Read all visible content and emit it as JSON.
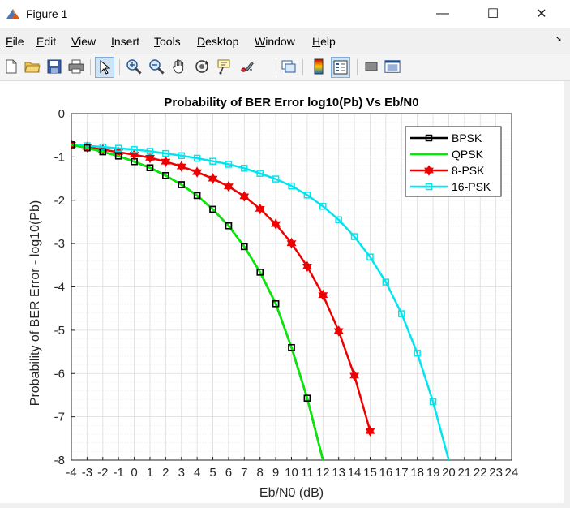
{
  "window": {
    "title": "Figure 1",
    "minimize_glyph": "—",
    "maximize_glyph": "☐",
    "close_glyph": "✕"
  },
  "menubar": {
    "items": [
      {
        "label": "File",
        "underline": "F",
        "rest": "ile"
      },
      {
        "label": "Edit",
        "underline": "E",
        "rest": "dit"
      },
      {
        "label": "View",
        "underline": "V",
        "rest": "iew"
      },
      {
        "label": "Insert",
        "underline": "I",
        "rest": "nsert"
      },
      {
        "label": "Tools",
        "underline": "T",
        "rest": "ools"
      },
      {
        "label": "Desktop",
        "underline": "D",
        "rest": "esktop"
      },
      {
        "label": "Window",
        "underline": "W",
        "rest": "indow"
      },
      {
        "label": "Help",
        "underline": "H",
        "rest": "elp"
      }
    ],
    "overflow_glyph": "➘"
  },
  "toolbar": {
    "icons": [
      "new-figure-icon",
      "open-file-icon",
      "save-icon",
      "print-icon",
      "edit-plot-arrow-icon",
      "zoom-in-icon",
      "zoom-out-icon",
      "pan-hand-icon",
      "rotate-3d-icon",
      "data-cursor-icon",
      "brush-icon",
      "link-plot-icon",
      "colorbar-icon",
      "legend-icon",
      "hide-plot-tools-icon",
      "show-plot-tools-icon"
    ]
  },
  "chart_data": {
    "type": "line",
    "title": "Probability of BER Error log10(Pb) Vs Eb/N0",
    "xlabel": "Eb/N0 (dB)",
    "ylabel": "Probability of BER Error - log10(Pb)",
    "xlim": [
      -4,
      24
    ],
    "ylim": [
      -8,
      0
    ],
    "xticks": [
      -4,
      -3,
      -2,
      -1,
      0,
      1,
      2,
      3,
      4,
      5,
      6,
      7,
      8,
      9,
      10,
      11,
      12,
      13,
      14,
      15,
      16,
      17,
      18,
      19,
      20,
      21,
      22,
      23,
      24
    ],
    "yticks": [
      0,
      -1,
      -2,
      -3,
      -4,
      -5,
      -6,
      -7,
      -8
    ],
    "grid": true,
    "minor_grid": true,
    "legend_position": "top-right",
    "x": [
      -4,
      -3,
      -2,
      -1,
      0,
      1,
      2,
      3,
      4,
      5,
      6,
      7,
      8,
      9,
      10,
      11,
      12,
      13,
      14,
      15,
      16,
      17,
      18,
      19,
      20
    ],
    "series": [
      {
        "name": "BPSK",
        "color": "#000000",
        "marker": "square",
        "values": [
          -0.72,
          -0.79,
          -0.88,
          -0.98,
          -1.11,
          -1.25,
          -1.43,
          -1.64,
          -1.89,
          -2.21,
          -2.59,
          -3.07,
          -3.66,
          -4.39,
          -5.4,
          -6.57,
          -8.0,
          null,
          null,
          null,
          null,
          null,
          null,
          null,
          null
        ]
      },
      {
        "name": "QPSK",
        "color": "#00ee00",
        "marker": "none",
        "values": [
          -0.72,
          -0.79,
          -0.88,
          -0.98,
          -1.11,
          -1.25,
          -1.43,
          -1.64,
          -1.89,
          -2.21,
          -2.59,
          -3.07,
          -3.66,
          -4.39,
          -5.4,
          -6.57,
          -8.0,
          null,
          null,
          null,
          null,
          null,
          null,
          null,
          null
        ]
      },
      {
        "name": "8-PSK",
        "color": "#ee0000",
        "marker": "hexagram",
        "values": [
          -0.72,
          -0.77,
          -0.83,
          -0.89,
          -0.95,
          -1.02,
          -1.11,
          -1.22,
          -1.35,
          -1.5,
          -1.68,
          -1.91,
          -2.2,
          -2.55,
          -2.99,
          -3.53,
          -4.19,
          -5.02,
          -6.05,
          -7.33,
          null,
          null,
          null,
          null,
          null
        ]
      },
      {
        "name": "16-PSK",
        "color": "#00e5ee",
        "marker": "square",
        "values": [
          -0.72,
          -0.74,
          -0.77,
          -0.8,
          -0.83,
          -0.87,
          -0.92,
          -0.97,
          -1.03,
          -1.1,
          -1.17,
          -1.26,
          -1.38,
          -1.51,
          -1.67,
          -1.88,
          -2.14,
          -2.45,
          -2.84,
          -3.31,
          -3.89,
          -4.62,
          -5.53,
          -6.65,
          -8.0
        ]
      }
    ]
  }
}
